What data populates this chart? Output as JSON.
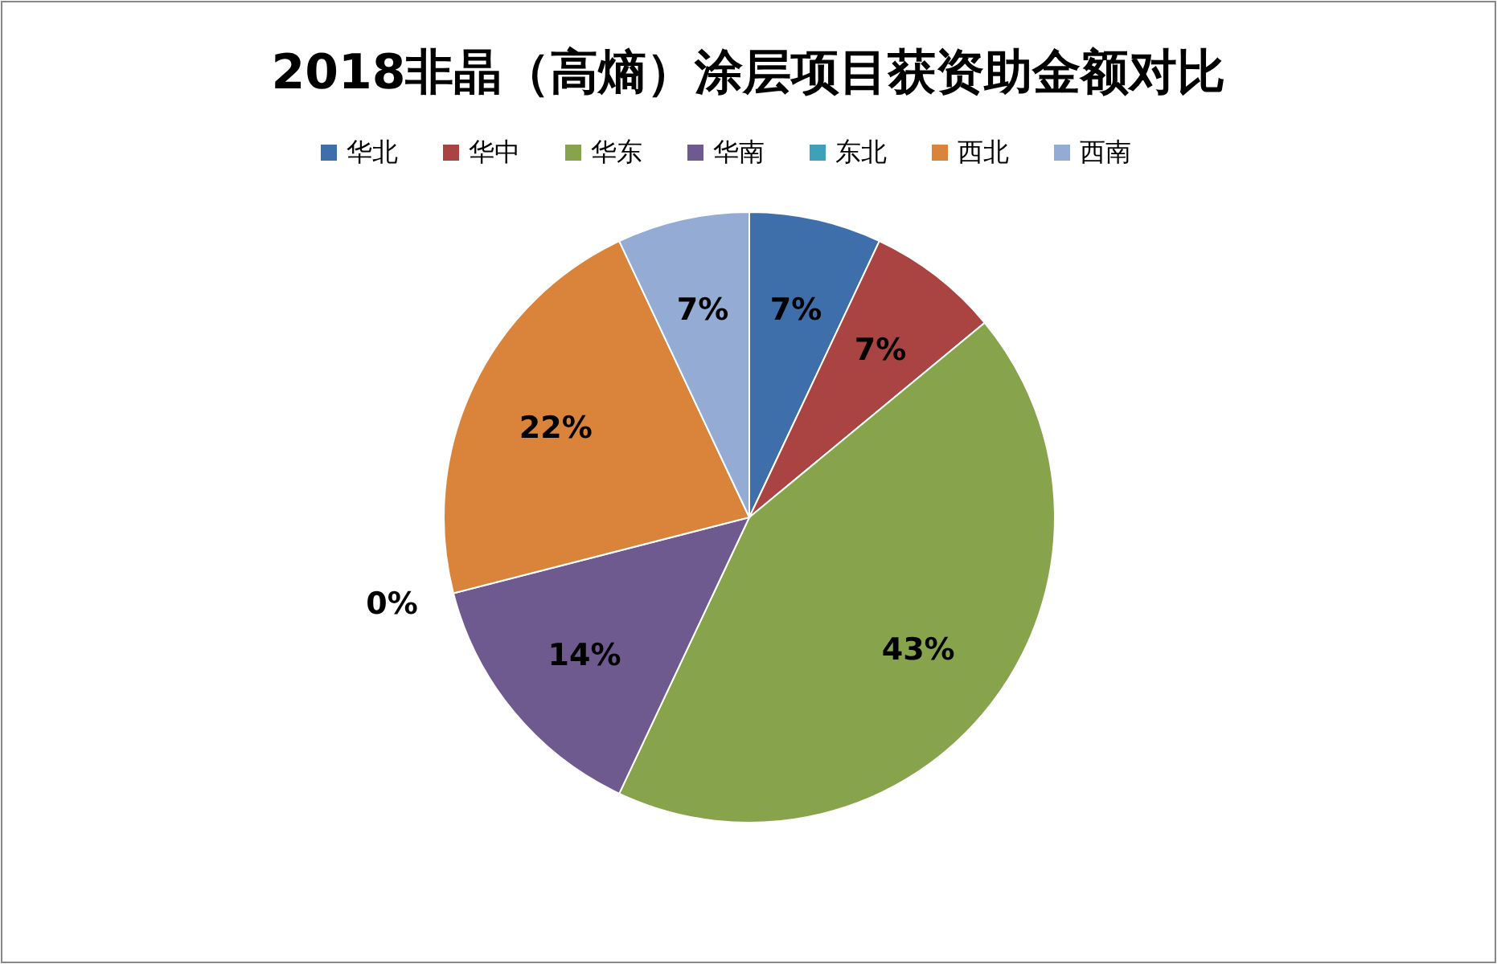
{
  "chart_data": {
    "type": "pie",
    "title": "2018非晶（高熵）涂层项目获资助金额对比",
    "categories": [
      "华北",
      "华中",
      "华东",
      "华南",
      "东北",
      "西北",
      "西南"
    ],
    "values": [
      7,
      7,
      43,
      14,
      0,
      22,
      7
    ],
    "colors": [
      "#3f6faa",
      "#a94442",
      "#87a34b",
      "#6f5a8f",
      "#3fa0b8",
      "#d9843a",
      "#94abd4"
    ],
    "value_labels": [
      "7%",
      "7%",
      "43%",
      "14%",
      "0%",
      "22%",
      "7%"
    ],
    "legend": "top"
  }
}
